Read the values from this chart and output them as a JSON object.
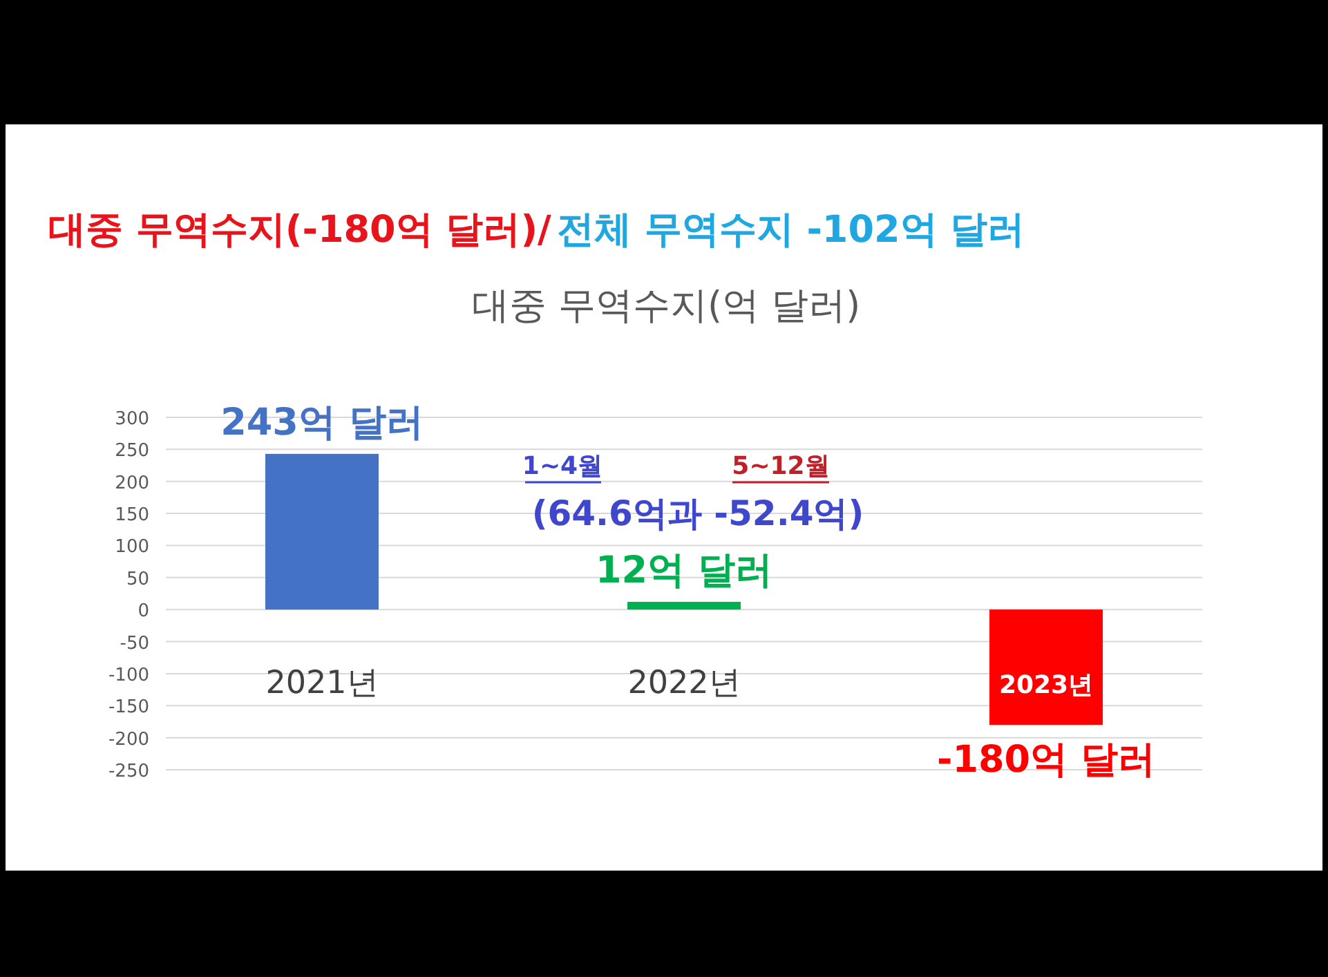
{
  "chart_data": {
    "type": "bar",
    "title": "대중 무역수지(-180억 달러)/",
    "subtitle": "대중 무역수지(억 달러)",
    "categories": [
      "2021년",
      "2022년",
      "2023년"
    ],
    "values": [
      243,
      12,
      -180
    ],
    "colors": [
      "#4472c4",
      "#00b050",
      "#ff0000"
    ],
    "value_labels": [
      "243억 달러",
      "12억 달러",
      "-180억 달러"
    ],
    "annotations": [
      "전체 무역수지 -102억 달러",
      "1~4월",
      "5~12월",
      "(64.6억과 -52.4억)"
    ],
    "ylim": [
      -250,
      300
    ],
    "yticks": [
      -250,
      -200,
      -150,
      -100,
      -50,
      0,
      50,
      100,
      150,
      200,
      250,
      300
    ],
    "grid": "y"
  }
}
